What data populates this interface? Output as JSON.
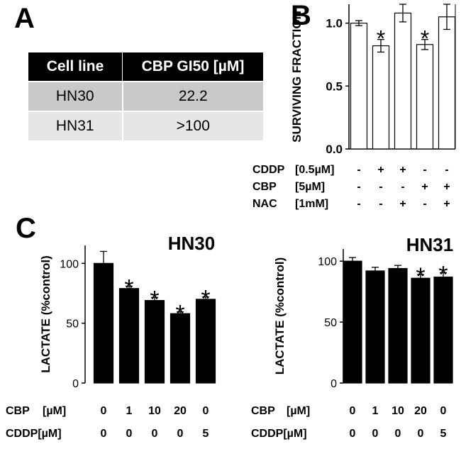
{
  "panels": {
    "a": "A",
    "b": "B",
    "c": "C"
  },
  "table": {
    "headers": [
      "Cell line",
      "CBP GI50 [µM]"
    ],
    "rows": [
      {
        "cell_line": "HN30",
        "gi50": "22.2"
      },
      {
        "cell_line": "HN31",
        "gi50": ">100"
      }
    ]
  },
  "chart_data": [
    {
      "id": "B",
      "type": "bar",
      "ylabel": "SURVIVING FRACTION",
      "ylim": [
        0,
        1.15
      ],
      "yticks": [
        0,
        0.5,
        1.0
      ],
      "ytick_labels": [
        "0.0",
        "0.5",
        "1.0"
      ],
      "bar_fill": "#ffffff",
      "values": [
        1.0,
        0.82,
        1.08,
        0.83,
        1.05
      ],
      "errors": [
        0.02,
        0.05,
        0.07,
        0.04,
        0.1
      ],
      "significant": [
        false,
        true,
        false,
        true,
        false
      ],
      "significance_mark": "*",
      "conditions": [
        {
          "label": "CDDP",
          "unit": "[0.5µM]",
          "values": [
            "-",
            "+",
            "+",
            "-",
            "-"
          ]
        },
        {
          "label": "CBP",
          "unit": "[5µM]",
          "values": [
            "-",
            "-",
            "-",
            "+",
            "+"
          ]
        },
        {
          "label": "NAC",
          "unit": "[1mM]",
          "values": [
            "-",
            "-",
            "+",
            "-",
            "+"
          ]
        }
      ]
    },
    {
      "id": "C-HN30",
      "type": "bar",
      "title": "HN30",
      "ylabel": "LACTATE (%control)",
      "ylim": [
        0,
        115
      ],
      "yticks": [
        0,
        50,
        100
      ],
      "ytick_labels": [
        "0",
        "50",
        "100"
      ],
      "bar_fill": "#000000",
      "values": [
        100,
        79,
        69,
        58,
        70
      ],
      "errors": [
        10,
        2,
        2.5,
        1.5,
        2
      ],
      "significant": [
        false,
        true,
        true,
        true,
        true
      ],
      "significance_mark": "*",
      "conditions": [
        {
          "label": "CBP",
          "unit": "[µM]",
          "values": [
            "0",
            "1",
            "10",
            "20",
            "0"
          ]
        },
        {
          "label": "CDDP[µM]",
          "unit": "",
          "values": [
            "0",
            "0",
            "0",
            "0",
            "5"
          ]
        }
      ]
    },
    {
      "id": "C-HN31",
      "type": "bar",
      "title": "HN31",
      "ylabel": "LACTATE (%control)",
      "ylim": [
        0,
        110
      ],
      "yticks": [
        0,
        50,
        100
      ],
      "ytick_labels": [
        "0",
        "50",
        "100"
      ],
      "bar_fill": "#000000",
      "values": [
        100,
        92,
        94,
        86,
        87
      ],
      "errors": [
        3,
        3,
        2.5,
        3,
        3.5
      ],
      "significant": [
        false,
        false,
        false,
        true,
        true
      ],
      "significance_mark": "*",
      "conditions": [
        {
          "label": "CBP",
          "unit": "[µM]",
          "values": [
            "0",
            "1",
            "10",
            "20",
            "0"
          ]
        },
        {
          "label": "CDDP[µM]",
          "unit": "",
          "values": [
            "0",
            "0",
            "0",
            "0",
            "5"
          ]
        }
      ]
    }
  ]
}
